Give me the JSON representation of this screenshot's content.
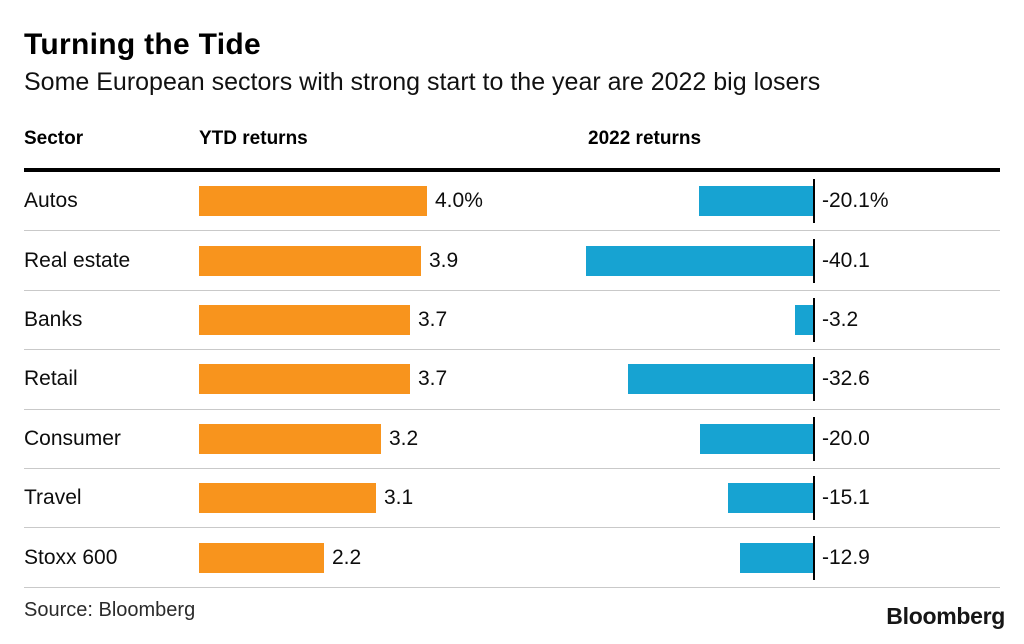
{
  "chart_data": {
    "type": "bar",
    "title": "Turning the Tide",
    "subtitle": "Some European sectors with strong start to the year are 2022 big losers",
    "columns": [
      "Sector",
      "YTD returns",
      "2022 returns"
    ],
    "categories": [
      "Autos",
      "Real estate",
      "Banks",
      "Retail",
      "Consumer",
      "Travel",
      "Stoxx 600"
    ],
    "series": [
      {
        "name": "YTD returns",
        "values": [
          4.0,
          3.9,
          3.7,
          3.7,
          3.2,
          3.1,
          2.2
        ],
        "labels": [
          "4.0%",
          "3.9",
          "3.7",
          "3.7",
          "3.2",
          "3.1",
          "2.2"
        ],
        "color": "#F8941D",
        "direction": "positive-from-left"
      },
      {
        "name": "2022 returns",
        "values": [
          -20.1,
          -40.1,
          -3.2,
          -32.6,
          -20.0,
          -15.1,
          -12.9
        ],
        "labels": [
          "-20.1%",
          "-40.1",
          "-3.2",
          "-32.6",
          "-20.0",
          "-15.1",
          "-12.9"
        ],
        "color": "#17A3D2",
        "direction": "negative-from-baseline"
      }
    ],
    "layout": {
      "xlim_ytd": [
        0,
        4.0
      ],
      "xlim_2022": [
        -40.1,
        0
      ],
      "grid": false,
      "legend": "column-headers",
      "value_labels": "outside-end"
    },
    "source": "Source: Bloomberg",
    "logo": "Bloomberg"
  }
}
